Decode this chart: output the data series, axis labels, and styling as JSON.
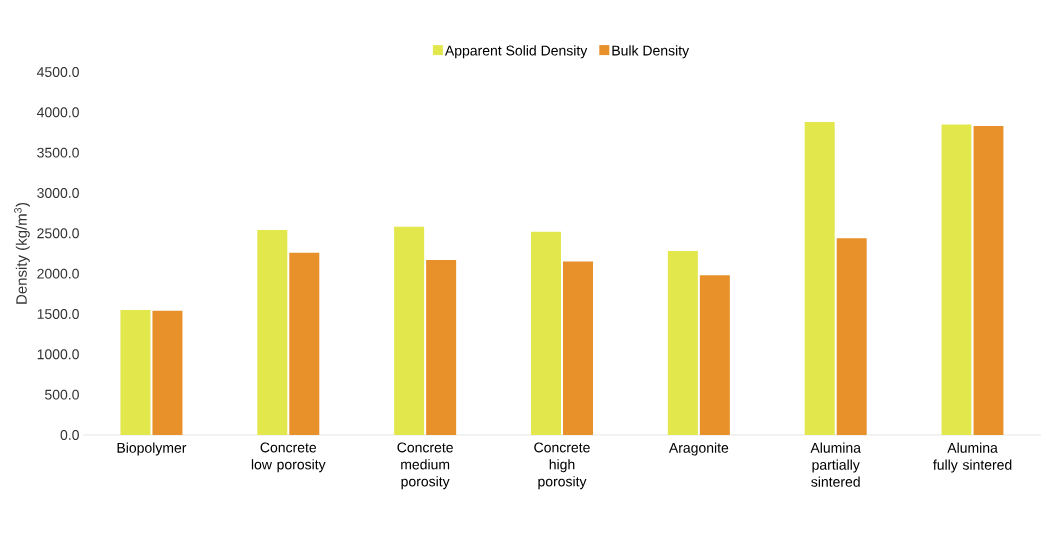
{
  "chart_data": {
    "type": "bar",
    "ylabel": "Density (kg/m$^{3}$)",
    "categories": [
      "Biopolymer",
      "Concrete low porosity",
      "Concrete medium porosity",
      "Concrete high porosity",
      "Aragonite",
      "Alumina partially sintered",
      "Alumina fully sintered"
    ],
    "series": [
      {
        "name": "Apparent Solid Density",
        "color": "#e2e74b",
        "values": [
          1550,
          2540,
          2580,
          2520,
          2280,
          3880,
          3850
        ]
      },
      {
        "name": "Bulk Density",
        "color": "#e8902a",
        "values": [
          1540,
          2260,
          2170,
          2150,
          1980,
          2440,
          3830
        ]
      }
    ],
    "ylim": [
      0,
      4500
    ],
    "yticks": [
      {
        "value": 0,
        "label": "0.0"
      },
      {
        "value": 500,
        "label": "500.0"
      },
      {
        "value": 1000,
        "label": "1000.0"
      },
      {
        "value": 1500,
        "label": "1500.0"
      },
      {
        "value": 2000,
        "label": "2000.0"
      },
      {
        "value": 2500,
        "label": "2500.0"
      },
      {
        "value": 3000,
        "label": "3000.0"
      },
      {
        "value": 3500,
        "label": "3500.0"
      },
      {
        "value": 4000,
        "label": "4000.0"
      },
      {
        "value": 4500,
        "label": "4500.0"
      }
    ],
    "grid": false,
    "legend": "top"
  }
}
